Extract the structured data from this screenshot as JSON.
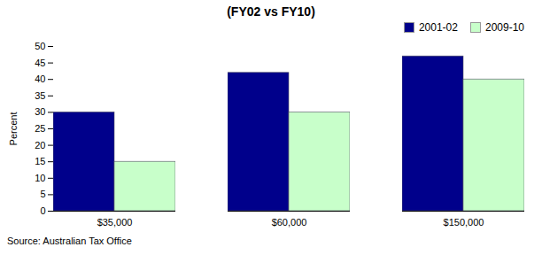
{
  "chart_data": {
    "type": "bar",
    "title": "(FY02 vs FY10)",
    "categories": [
      "$35,000",
      "$60,000",
      "$150,000"
    ],
    "series": [
      {
        "name": "2001-02",
        "color": "#00008B",
        "values": [
          30,
          42,
          47
        ]
      },
      {
        "name": "2009-10",
        "color": "#C8FFCA",
        "values": [
          15,
          30,
          40
        ]
      }
    ],
    "ylabel": "Percent",
    "ylim": [
      0,
      50
    ],
    "yticks": [
      0,
      5,
      10,
      15,
      20,
      25,
      30,
      35,
      40,
      45,
      50
    ],
    "grid": false,
    "legend": "upper right",
    "annotations": [
      "Source: Australian Tax Office"
    ]
  }
}
